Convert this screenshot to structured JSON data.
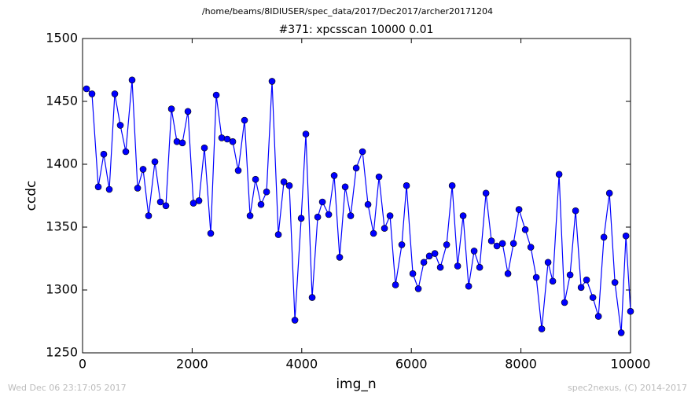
{
  "chart_data": {
    "type": "line",
    "title": "/home/beams/8IDIUSER/spec_data/2017/Dec2017/archer20171204",
    "subtitle": "#371: xpcsscan 10000 0.01",
    "xlabel": "img_n",
    "ylabel": "ccdc",
    "annotations": [
      "Wed Dec 06 23:17:05 2017",
      "spec2nexus, (C) 2014-2017"
    ],
    "x": [
      72,
      172,
      287,
      387,
      488,
      588,
      689,
      789,
      904,
      1005,
      1105,
      1205,
      1320,
      1421,
      1521,
      1622,
      1722,
      1822,
      1923,
      2023,
      2124,
      2224,
      2339,
      2440,
      2540,
      2640,
      2741,
      2841,
      2956,
      3057,
      3157,
      3257,
      3358,
      3458,
      3573,
      3674,
      3774,
      3875,
      3990,
      4075,
      4190,
      4291,
      4377,
      4492,
      4592,
      4692,
      4793,
      4893,
      4994,
      5109,
      5209,
      5310,
      5410,
      5510,
      5611,
      5711,
      5826,
      5912,
      6027,
      6127,
      6228,
      6328,
      6429,
      6529,
      6644,
      6745,
      6845,
      6945,
      7046,
      7146,
      7247,
      7362,
      7462,
      7562,
      7663,
      7763,
      7864,
      7964,
      8079,
      8180,
      8280,
      8380,
      8495,
      8581,
      8696,
      8796,
      8897,
      8997,
      9098,
      9198,
      9313,
      9414,
      9514,
      9615,
      9715,
      9830,
      9916,
      10000
    ],
    "series": [
      {
        "name": "ccdc",
        "color": "#0000ff",
        "values": [
          1460,
          1456,
          1382,
          1408,
          1380,
          1456,
          1431,
          1410,
          1467,
          1381,
          1396,
          1359,
          1402,
          1370,
          1367,
          1444,
          1418,
          1417,
          1442,
          1369,
          1371,
          1413,
          1345,
          1455,
          1421,
          1420,
          1418,
          1395,
          1435,
          1359,
          1388,
          1368,
          1378,
          1466,
          1344,
          1386,
          1383,
          1276,
          1357,
          1424,
          1294,
          1358,
          1370,
          1360,
          1391,
          1326,
          1382,
          1359,
          1397,
          1410,
          1368,
          1345,
          1390,
          1349,
          1359,
          1304,
          1336,
          1383,
          1313,
          1301,
          1322,
          1327,
          1329,
          1318,
          1336,
          1383,
          1319,
          1359,
          1303,
          1331,
          1318,
          1377,
          1339,
          1335,
          1337,
          1313,
          1337,
          1364,
          1348,
          1334,
          1310,
          1269,
          1322,
          1307,
          1392,
          1290,
          1312,
          1363,
          1302,
          1308,
          1294,
          1279,
          1342,
          1377,
          1306,
          1266,
          1343,
          1283
        ]
      }
    ],
    "xlim": [
      0,
      10000
    ],
    "xticks": [
      0,
      2000,
      4000,
      6000,
      8000,
      10000
    ],
    "ylim": [
      1250,
      1500
    ],
    "yticks": [
      1250,
      1300,
      1350,
      1400,
      1450,
      1500
    ]
  }
}
